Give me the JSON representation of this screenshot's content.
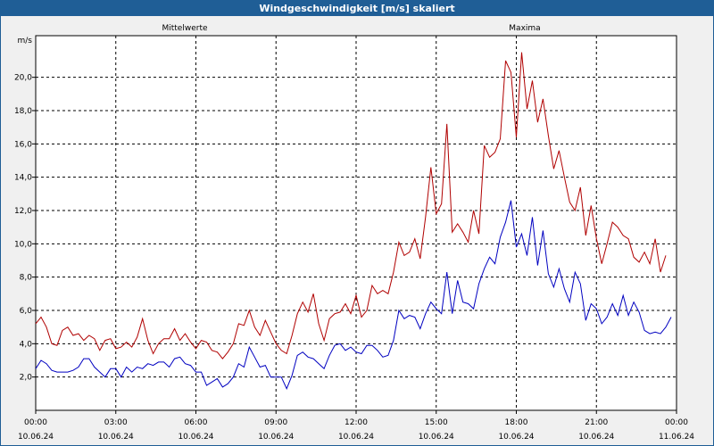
{
  "window": {
    "title": "Windgeschwindigkeit [m/s] skaliert"
  },
  "chart_data": {
    "type": "line",
    "title": "Windgeschwindigkeit [m/s] skaliert",
    "ylabel": "m/s",
    "ylim": [
      0,
      22.5
    ],
    "xlim": [
      0,
      24
    ],
    "grid": true,
    "y_ticks": [
      "2,0",
      "4,0",
      "6,0",
      "8,0",
      "10,0",
      "12,0",
      "14,0",
      "16,0",
      "18,0",
      "20,0"
    ],
    "x_ticks": [
      {
        "time": "00:00",
        "date": "10.06.24"
      },
      {
        "time": "03:00",
        "date": "10.06.24"
      },
      {
        "time": "06:00",
        "date": "10.06.24"
      },
      {
        "time": "09:00",
        "date": "10.06.24"
      },
      {
        "time": "12:00",
        "date": "10.06.24"
      },
      {
        "time": "15:00",
        "date": "10.06.24"
      },
      {
        "time": "18:00",
        "date": "10.06.24"
      },
      {
        "time": "21:00",
        "date": "10.06.24"
      },
      {
        "time": "00:00",
        "date": "11.06.24"
      }
    ],
    "series": [
      {
        "name": "Mittelwerte",
        "color": "#0000c0",
        "legend_position": "top-left",
        "values": [
          [
            0.0,
            2.5
          ],
          [
            0.2,
            3.0
          ],
          [
            0.4,
            2.8
          ],
          [
            0.6,
            2.4
          ],
          [
            0.8,
            2.3
          ],
          [
            1.0,
            2.3
          ],
          [
            1.2,
            2.3
          ],
          [
            1.4,
            2.4
          ],
          [
            1.6,
            2.6
          ],
          [
            1.8,
            3.1
          ],
          [
            2.0,
            3.1
          ],
          [
            2.2,
            2.6
          ],
          [
            2.4,
            2.3
          ],
          [
            2.6,
            2.0
          ],
          [
            2.8,
            2.5
          ],
          [
            3.0,
            2.5
          ],
          [
            3.2,
            2.0
          ],
          [
            3.4,
            2.6
          ],
          [
            3.6,
            2.3
          ],
          [
            3.8,
            2.6
          ],
          [
            4.0,
            2.5
          ],
          [
            4.2,
            2.8
          ],
          [
            4.4,
            2.7
          ],
          [
            4.6,
            2.9
          ],
          [
            4.8,
            2.9
          ],
          [
            5.0,
            2.6
          ],
          [
            5.2,
            3.1
          ],
          [
            5.4,
            3.2
          ],
          [
            5.6,
            2.8
          ],
          [
            5.8,
            2.7
          ],
          [
            6.0,
            2.3
          ],
          [
            6.2,
            2.3
          ],
          [
            6.4,
            1.5
          ],
          [
            6.6,
            1.7
          ],
          [
            6.8,
            1.9
          ],
          [
            7.0,
            1.4
          ],
          [
            7.2,
            1.6
          ],
          [
            7.4,
            2.0
          ],
          [
            7.6,
            2.8
          ],
          [
            7.8,
            2.6
          ],
          [
            8.0,
            3.8
          ],
          [
            8.2,
            3.2
          ],
          [
            8.4,
            2.6
          ],
          [
            8.6,
            2.7
          ],
          [
            8.8,
            2.0
          ],
          [
            9.0,
            2.0
          ],
          [
            9.2,
            2.0
          ],
          [
            9.4,
            1.3
          ],
          [
            9.6,
            2.1
          ],
          [
            9.8,
            3.3
          ],
          [
            10.0,
            3.5
          ],
          [
            10.2,
            3.2
          ],
          [
            10.4,
            3.1
          ],
          [
            10.6,
            2.8
          ],
          [
            10.8,
            2.5
          ],
          [
            11.0,
            3.3
          ],
          [
            11.2,
            3.9
          ],
          [
            11.4,
            4.0
          ],
          [
            11.6,
            3.6
          ],
          [
            11.8,
            3.8
          ],
          [
            12.0,
            3.5
          ],
          [
            12.2,
            3.4
          ],
          [
            12.4,
            3.9
          ],
          [
            12.6,
            3.9
          ],
          [
            12.8,
            3.6
          ],
          [
            13.0,
            3.2
          ],
          [
            13.2,
            3.3
          ],
          [
            13.4,
            4.2
          ],
          [
            13.6,
            6.0
          ],
          [
            13.8,
            5.5
          ],
          [
            14.0,
            5.7
          ],
          [
            14.2,
            5.6
          ],
          [
            14.4,
            4.9
          ],
          [
            14.6,
            5.8
          ],
          [
            14.8,
            6.5
          ],
          [
            15.0,
            6.1
          ],
          [
            15.2,
            5.8
          ],
          [
            15.4,
            8.3
          ],
          [
            15.6,
            5.8
          ],
          [
            15.8,
            7.8
          ],
          [
            16.0,
            6.5
          ],
          [
            16.2,
            6.4
          ],
          [
            16.4,
            6.1
          ],
          [
            16.6,
            7.6
          ],
          [
            16.8,
            8.5
          ],
          [
            17.0,
            9.2
          ],
          [
            17.2,
            8.8
          ],
          [
            17.4,
            10.4
          ],
          [
            17.6,
            11.3
          ],
          [
            17.8,
            12.6
          ],
          [
            18.0,
            9.8
          ],
          [
            18.2,
            10.6
          ],
          [
            18.4,
            9.3
          ],
          [
            18.6,
            11.6
          ],
          [
            18.8,
            8.7
          ],
          [
            19.0,
            10.8
          ],
          [
            19.2,
            8.2
          ],
          [
            19.4,
            7.4
          ],
          [
            19.6,
            8.5
          ],
          [
            19.8,
            7.3
          ],
          [
            20.0,
            6.5
          ],
          [
            20.2,
            8.3
          ],
          [
            20.4,
            7.6
          ],
          [
            20.6,
            5.4
          ],
          [
            20.8,
            6.4
          ],
          [
            21.0,
            6.1
          ],
          [
            21.2,
            5.2
          ],
          [
            21.4,
            5.6
          ],
          [
            21.6,
            6.4
          ],
          [
            21.8,
            5.7
          ],
          [
            22.0,
            6.9
          ],
          [
            22.2,
            5.7
          ],
          [
            22.4,
            6.5
          ],
          [
            22.6,
            5.9
          ],
          [
            22.8,
            4.8
          ],
          [
            23.0,
            4.6
          ],
          [
            23.2,
            4.7
          ],
          [
            23.4,
            4.6
          ],
          [
            23.6,
            5.0
          ],
          [
            23.8,
            5.6
          ]
        ]
      },
      {
        "name": "Maxima",
        "color": "#b00000",
        "legend_position": "top-right",
        "values": [
          [
            0.0,
            5.2
          ],
          [
            0.2,
            5.6
          ],
          [
            0.4,
            5.0
          ],
          [
            0.6,
            4.0
          ],
          [
            0.8,
            3.9
          ],
          [
            1.0,
            4.8
          ],
          [
            1.2,
            5.0
          ],
          [
            1.4,
            4.5
          ],
          [
            1.6,
            4.6
          ],
          [
            1.8,
            4.2
          ],
          [
            2.0,
            4.5
          ],
          [
            2.2,
            4.3
          ],
          [
            2.4,
            3.6
          ],
          [
            2.6,
            4.2
          ],
          [
            2.8,
            4.3
          ],
          [
            3.0,
            3.7
          ],
          [
            3.2,
            3.8
          ],
          [
            3.4,
            4.1
          ],
          [
            3.6,
            3.8
          ],
          [
            3.8,
            4.4
          ],
          [
            4.0,
            5.5
          ],
          [
            4.2,
            4.2
          ],
          [
            4.4,
            3.4
          ],
          [
            4.6,
            4.0
          ],
          [
            4.8,
            4.3
          ],
          [
            5.0,
            4.3
          ],
          [
            5.2,
            4.9
          ],
          [
            5.4,
            4.2
          ],
          [
            5.6,
            4.6
          ],
          [
            5.8,
            4.1
          ],
          [
            6.0,
            3.7
          ],
          [
            6.2,
            4.2
          ],
          [
            6.4,
            4.1
          ],
          [
            6.6,
            3.6
          ],
          [
            6.8,
            3.5
          ],
          [
            7.0,
            3.1
          ],
          [
            7.2,
            3.5
          ],
          [
            7.4,
            4.0
          ],
          [
            7.6,
            5.2
          ],
          [
            7.8,
            5.1
          ],
          [
            8.0,
            6.0
          ],
          [
            8.2,
            5.0
          ],
          [
            8.4,
            4.5
          ],
          [
            8.6,
            5.4
          ],
          [
            8.8,
            4.7
          ],
          [
            9.0,
            4.0
          ],
          [
            9.2,
            3.6
          ],
          [
            9.4,
            3.4
          ],
          [
            9.6,
            4.5
          ],
          [
            9.8,
            5.8
          ],
          [
            10.0,
            6.5
          ],
          [
            10.2,
            5.9
          ],
          [
            10.4,
            7.0
          ],
          [
            10.6,
            5.2
          ],
          [
            10.8,
            4.2
          ],
          [
            11.0,
            5.5
          ],
          [
            11.2,
            5.8
          ],
          [
            11.4,
            5.9
          ],
          [
            11.6,
            6.4
          ],
          [
            11.8,
            5.8
          ],
          [
            12.0,
            6.9
          ],
          [
            12.2,
            5.6
          ],
          [
            12.4,
            6.0
          ],
          [
            12.6,
            7.5
          ],
          [
            12.8,
            7.0
          ],
          [
            13.0,
            7.2
          ],
          [
            13.2,
            7.0
          ],
          [
            13.4,
            8.3
          ],
          [
            13.6,
            10.1
          ],
          [
            13.8,
            9.3
          ],
          [
            14.0,
            9.5
          ],
          [
            14.2,
            10.3
          ],
          [
            14.4,
            9.1
          ],
          [
            14.6,
            11.6
          ],
          [
            14.8,
            14.6
          ],
          [
            15.0,
            11.8
          ],
          [
            15.2,
            12.4
          ],
          [
            15.4,
            17.2
          ],
          [
            15.6,
            10.7
          ],
          [
            15.8,
            11.2
          ],
          [
            16.0,
            10.7
          ],
          [
            16.2,
            10.1
          ],
          [
            16.4,
            12.0
          ],
          [
            16.6,
            10.6
          ],
          [
            16.8,
            15.9
          ],
          [
            17.0,
            15.2
          ],
          [
            17.2,
            15.5
          ],
          [
            17.4,
            16.3
          ],
          [
            17.6,
            21.0
          ],
          [
            17.8,
            20.3
          ],
          [
            18.0,
            16.4
          ],
          [
            18.2,
            21.5
          ],
          [
            18.4,
            18.1
          ],
          [
            18.6,
            19.8
          ],
          [
            18.8,
            17.3
          ],
          [
            19.0,
            18.7
          ],
          [
            19.2,
            16.5
          ],
          [
            19.4,
            14.5
          ],
          [
            19.6,
            15.6
          ],
          [
            19.8,
            14.0
          ],
          [
            20.0,
            12.5
          ],
          [
            20.2,
            12.0
          ],
          [
            20.4,
            13.4
          ],
          [
            20.6,
            10.5
          ],
          [
            20.8,
            12.3
          ],
          [
            21.0,
            10.3
          ],
          [
            21.2,
            8.8
          ],
          [
            21.4,
            10.0
          ],
          [
            21.6,
            11.3
          ],
          [
            21.8,
            11.0
          ],
          [
            22.0,
            10.5
          ],
          [
            22.2,
            10.3
          ],
          [
            22.4,
            9.2
          ],
          [
            22.6,
            8.9
          ],
          [
            22.8,
            9.5
          ],
          [
            23.0,
            8.8
          ],
          [
            23.2,
            10.3
          ],
          [
            23.4,
            8.3
          ],
          [
            23.6,
            9.3
          ]
        ]
      }
    ]
  }
}
